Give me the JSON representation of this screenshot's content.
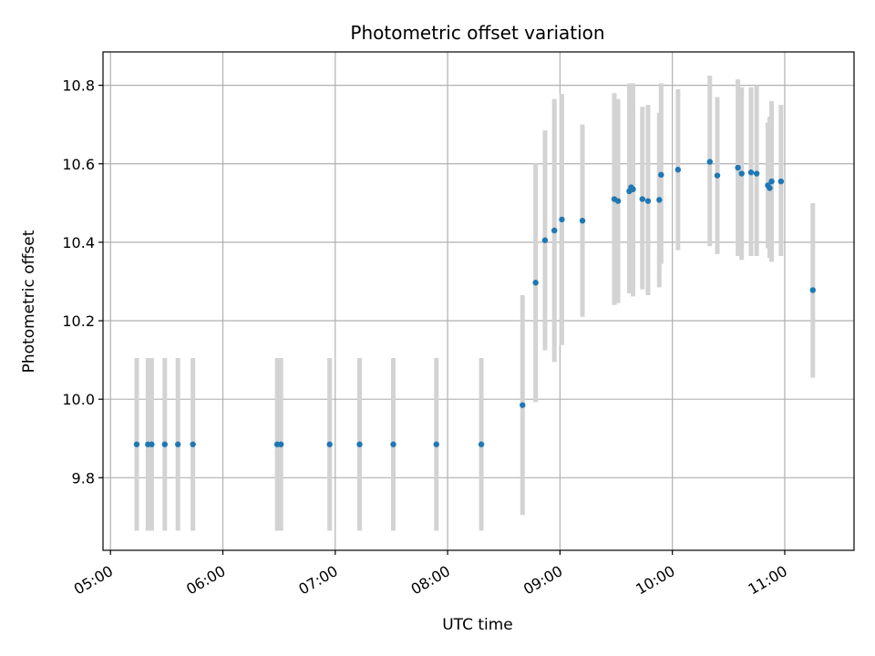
{
  "chart_data": {
    "type": "scatter",
    "title": "Photometric offset variation",
    "xlabel": "UTC time",
    "ylabel": "Photometric offset",
    "x_tick_labels": [
      "05:00",
      "06:00",
      "07:00",
      "08:00",
      "09:00",
      "10:00",
      "11:00"
    ],
    "x_ticks": [
      "05:00",
      "06:00",
      "07:00",
      "08:00",
      "09:00",
      "10:00",
      "11:00"
    ],
    "y_tick_labels": [
      "9.8",
      "10.0",
      "10.2",
      "10.4",
      "10.6",
      "10.8"
    ],
    "y_ticks": [
      9.8,
      10.0,
      10.2,
      10.4,
      10.6,
      10.8
    ],
    "xlim": [
      "04:56",
      "11:37"
    ],
    "ylim": [
      9.615,
      10.885
    ],
    "grid": true,
    "marker_color": "#1f77b4",
    "errorbar_color": "#d3d3d3",
    "series": [
      {
        "points": [
          {
            "x": "05:14",
            "y": 9.885,
            "ylow": 9.665,
            "yhigh": 10.105
          },
          {
            "x": "05:20",
            "y": 9.885,
            "ylow": 9.665,
            "yhigh": 10.105
          },
          {
            "x": "05:22",
            "y": 9.885,
            "ylow": 9.665,
            "yhigh": 10.105
          },
          {
            "x": "05:29",
            "y": 9.885,
            "ylow": 9.665,
            "yhigh": 10.105
          },
          {
            "x": "05:36",
            "y": 9.885,
            "ylow": 9.665,
            "yhigh": 10.105
          },
          {
            "x": "05:44",
            "y": 9.885,
            "ylow": 9.665,
            "yhigh": 10.105
          },
          {
            "x": "06:29",
            "y": 9.885,
            "ylow": 9.665,
            "yhigh": 10.105
          },
          {
            "x": "06:31",
            "y": 9.885,
            "ylow": 9.665,
            "yhigh": 10.105
          },
          {
            "x": "06:57",
            "y": 9.885,
            "ylow": 9.665,
            "yhigh": 10.105
          },
          {
            "x": "07:13",
            "y": 9.885,
            "ylow": 9.665,
            "yhigh": 10.105
          },
          {
            "x": "07:31",
            "y": 9.885,
            "ylow": 9.665,
            "yhigh": 10.105
          },
          {
            "x": "07:54",
            "y": 9.885,
            "ylow": 9.665,
            "yhigh": 10.105
          },
          {
            "x": "08:18",
            "y": 9.885,
            "ylow": 9.665,
            "yhigh": 10.105
          },
          {
            "x": "08:40",
            "y": 9.985,
            "ylow": 9.705,
            "yhigh": 10.265
          },
          {
            "x": "08:47",
            "y": 10.297,
            "ylow": 9.993,
            "yhigh": 10.601
          },
          {
            "x": "08:52",
            "y": 10.405,
            "ylow": 10.125,
            "yhigh": 10.685
          },
          {
            "x": "08:57",
            "y": 10.43,
            "ylow": 10.095,
            "yhigh": 10.765
          },
          {
            "x": "09:01",
            "y": 10.458,
            "ylow": 10.138,
            "yhigh": 10.778
          },
          {
            "x": "09:12",
            "y": 10.455,
            "ylow": 10.21,
            "yhigh": 10.7
          },
          {
            "x": "09:29",
            "y": 10.51,
            "ylow": 10.24,
            "yhigh": 10.78
          },
          {
            "x": "09:31",
            "y": 10.505,
            "ylow": 10.245,
            "yhigh": 10.765
          },
          {
            "x": "09:37",
            "y": 10.53,
            "ylow": 10.27,
            "yhigh": 10.805
          },
          {
            "x": "09:38",
            "y": 10.54,
            "ylow": 10.27,
            "yhigh": 10.805
          },
          {
            "x": "09:39",
            "y": 10.535,
            "ylow": 10.262,
            "yhigh": 10.805
          },
          {
            "x": "09:44",
            "y": 10.51,
            "ylow": 10.28,
            "yhigh": 10.745
          },
          {
            "x": "09:47",
            "y": 10.505,
            "ylow": 10.265,
            "yhigh": 10.75
          },
          {
            "x": "09:53",
            "y": 10.508,
            "ylow": 10.285,
            "yhigh": 10.73
          },
          {
            "x": "09:54",
            "y": 10.572,
            "ylow": 10.345,
            "yhigh": 10.805
          },
          {
            "x": "10:03",
            "y": 10.585,
            "ylow": 10.38,
            "yhigh": 10.79
          },
          {
            "x": "10:20",
            "y": 10.605,
            "ylow": 10.39,
            "yhigh": 10.825
          },
          {
            "x": "10:24",
            "y": 10.57,
            "ylow": 10.37,
            "yhigh": 10.77
          },
          {
            "x": "10:35",
            "y": 10.59,
            "ylow": 10.365,
            "yhigh": 10.815
          },
          {
            "x": "10:37",
            "y": 10.575,
            "ylow": 10.355,
            "yhigh": 10.795
          },
          {
            "x": "10:42",
            "y": 10.578,
            "ylow": 10.365,
            "yhigh": 10.795
          },
          {
            "x": "10:45",
            "y": 10.575,
            "ylow": 10.365,
            "yhigh": 10.8
          },
          {
            "x": "10:51",
            "y": 10.545,
            "ylow": 10.385,
            "yhigh": 10.705
          },
          {
            "x": "10:52",
            "y": 10.538,
            "ylow": 10.36,
            "yhigh": 10.72
          },
          {
            "x": "10:53",
            "y": 10.555,
            "ylow": 10.35,
            "yhigh": 10.76
          },
          {
            "x": "10:58",
            "y": 10.555,
            "ylow": 10.365,
            "yhigh": 10.75
          },
          {
            "x": "11:15",
            "y": 10.278,
            "ylow": 10.055,
            "yhigh": 10.5
          }
        ]
      }
    ]
  }
}
